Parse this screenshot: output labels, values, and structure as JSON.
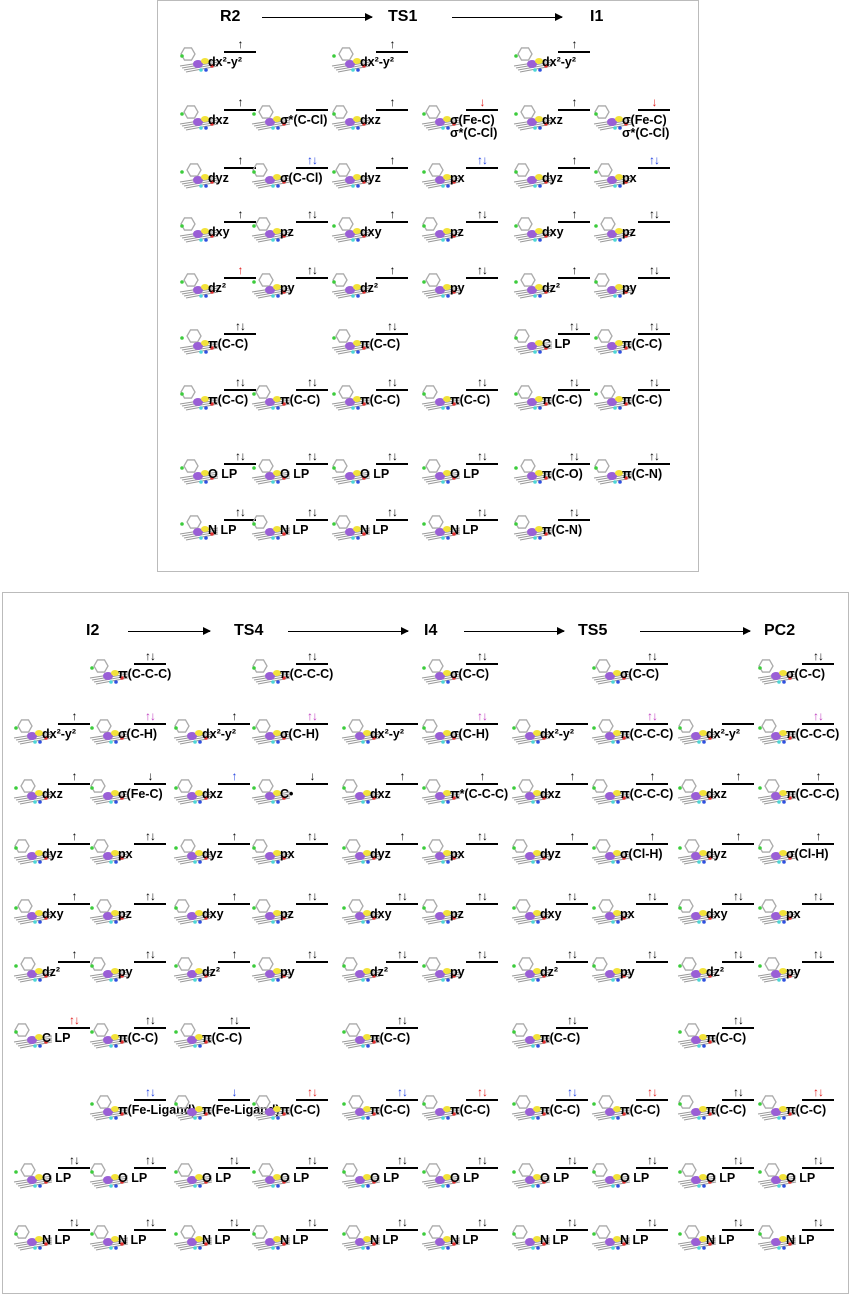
{
  "top_panel": {
    "stages": [
      "R2",
      "TS1",
      "I1"
    ],
    "columns": [
      {
        "orbitals": [
          {
            "label": "dx²-y²",
            "spin": "↑",
            "color": "black"
          },
          {
            "label": "dxz",
            "spin": "↑",
            "color": "black"
          },
          {
            "label": "dyz",
            "spin": "↑",
            "color": "black"
          },
          {
            "label": "dxy",
            "spin": "↑",
            "color": "black"
          },
          {
            "label": "dz²",
            "spin": "↑",
            "color": "red"
          },
          {
            "label": "π(C-C)",
            "spin": "↑↓",
            "color": "black"
          },
          {
            "label": "π(C-C)",
            "spin": "↑↓",
            "color": "black"
          },
          {
            "label": "O LP",
            "spin": "↑↓",
            "color": "black"
          },
          {
            "label": "N LP",
            "spin": "↑↓",
            "color": "black"
          }
        ]
      },
      {
        "orbitals": [
          null,
          {
            "label": "σ*(C-Cl)",
            "spin": "",
            "color": "black"
          },
          {
            "label": "σ(C-Cl)",
            "spin": "↑↓",
            "color": "blue"
          },
          {
            "label": "pz",
            "spin": "↑↓",
            "color": "black"
          },
          {
            "label": "py",
            "spin": "↑↓",
            "color": "black"
          },
          null,
          {
            "label": "π(C-C)",
            "spin": "↑↓",
            "color": "black"
          },
          {
            "label": "O LP",
            "spin": "↑↓",
            "color": "black"
          },
          {
            "label": "N LP",
            "spin": "↑↓",
            "color": "black"
          }
        ]
      },
      {
        "orbitals": [
          {
            "label": "dx²-y²",
            "spin": "↑",
            "color": "black"
          },
          {
            "label": "dxz",
            "spin": "↑",
            "color": "black"
          },
          {
            "label": "dyz",
            "spin": "↑",
            "color": "black"
          },
          {
            "label": "dxy",
            "spin": "↑",
            "color": "black"
          },
          {
            "label": "dz²",
            "spin": "↑",
            "color": "black"
          },
          {
            "label": "π(C-C)",
            "spin": "↑↓",
            "color": "black"
          },
          {
            "label": "π(C-C)",
            "spin": "↑↓",
            "color": "black"
          },
          {
            "label": "O LP",
            "spin": "↑↓",
            "color": "black"
          },
          {
            "label": "N LP",
            "spin": "↑↓",
            "color": "black"
          }
        ]
      },
      {
        "orbitals": [
          null,
          {
            "label": "σ(Fe-C)|σ*(C-Cl)",
            "spin": "↓",
            "color": "red"
          },
          {
            "label": "px",
            "spin": "↑↓",
            "color": "blue"
          },
          {
            "label": "pz",
            "spin": "↑↓",
            "color": "black"
          },
          {
            "label": "py",
            "spin": "↑↓",
            "color": "black"
          },
          null,
          {
            "label": "π(C-C)",
            "spin": "↑↓",
            "color": "black"
          },
          {
            "label": "O LP",
            "spin": "↑↓",
            "color": "black"
          },
          {
            "label": "N LP",
            "spin": "↑↓",
            "color": "black"
          }
        ]
      },
      {
        "orbitals": [
          {
            "label": "dx²-y²",
            "spin": "↑",
            "color": "black"
          },
          {
            "label": "dxz",
            "spin": "↑",
            "color": "black"
          },
          {
            "label": "dyz",
            "spin": "↑",
            "color": "black"
          },
          {
            "label": "dxy",
            "spin": "↑",
            "color": "black"
          },
          {
            "label": "dz²",
            "spin": "↑",
            "color": "black"
          },
          {
            "label": "C LP",
            "spin": "↑↓",
            "color": "black"
          },
          {
            "label": "π(C-C)",
            "spin": "↑↓",
            "color": "black"
          },
          {
            "label": "π(C-O)",
            "spin": "↑↓",
            "color": "black"
          },
          {
            "label": "π(C-N)",
            "spin": "↑↓",
            "color": "black"
          }
        ]
      },
      {
        "orbitals": [
          null,
          {
            "label": "σ(Fe-C)|σ*(C-Cl)",
            "spin": "↓",
            "color": "red"
          },
          {
            "label": "px",
            "spin": "↑↓",
            "color": "blue"
          },
          {
            "label": "pz",
            "spin": "↑↓",
            "color": "black"
          },
          {
            "label": "py",
            "spin": "↑↓",
            "color": "black"
          },
          {
            "label": "π(C-C)",
            "spin": "↑↓",
            "color": "black"
          },
          {
            "label": "π(C-C)",
            "spin": "↑↓",
            "color": "black"
          },
          {
            "label": "π(C-N)",
            "spin": "↑↓",
            "color": "black"
          },
          null
        ]
      }
    ]
  },
  "bottom_panel": {
    "stages": [
      "I2",
      "TS4",
      "I4",
      "TS5",
      "PC2"
    ],
    "columns": [
      {
        "orbitals": [
          null,
          {
            "label": "dx²-y²",
            "spin": "↑",
            "color": "black"
          },
          {
            "label": "dxz",
            "spin": "↑",
            "color": "black"
          },
          {
            "label": "dyz",
            "spin": "↑",
            "color": "black"
          },
          {
            "label": "dxy",
            "spin": "↑",
            "color": "black"
          },
          {
            "label": "dz²",
            "spin": "↑",
            "color": "black"
          },
          {
            "label": "C LP",
            "spin": "↑↓",
            "color": "red"
          },
          null,
          {
            "label": "O LP",
            "spin": "↑↓",
            "color": "black"
          },
          {
            "label": "N LP",
            "spin": "↑↓",
            "color": "black"
          }
        ]
      },
      {
        "orbitals": [
          {
            "label": "π(C-C-C)",
            "spin": "↑↓",
            "color": "black"
          },
          {
            "label": "σ(C-H)",
            "spin": "↑↓",
            "color": "magenta"
          },
          {
            "label": "σ(Fe-C)",
            "spin": "↓",
            "color": "black"
          },
          {
            "label": "px",
            "spin": "↑↓",
            "color": "black"
          },
          {
            "label": "pz",
            "spin": "↑↓",
            "color": "black"
          },
          {
            "label": "py",
            "spin": "↑↓",
            "color": "black"
          },
          {
            "label": "π(C-C)",
            "spin": "↑↓",
            "color": "black"
          },
          {
            "label": "π(Fe-Ligand)",
            "spin": "↑↓",
            "color": "blue"
          },
          {
            "label": "O LP",
            "spin": "↑↓",
            "color": "black"
          },
          {
            "label": "N LP",
            "spin": "↑↓",
            "color": "black"
          }
        ]
      },
      {
        "orbitals": [
          null,
          {
            "label": "dx²-y²",
            "spin": "↑",
            "color": "black"
          },
          {
            "label": "dxz",
            "spin": "↑",
            "color": "blue"
          },
          {
            "label": "dyz",
            "spin": "↑",
            "color": "black"
          },
          {
            "label": "dxy",
            "spin": "↑",
            "color": "black"
          },
          {
            "label": "dz²",
            "spin": "↑",
            "color": "black"
          },
          {
            "label": "π(C-C)",
            "spin": "↑↓",
            "color": "black"
          },
          {
            "label": "π(Fe-Ligand)",
            "spin": "↓",
            "color": "blue"
          },
          {
            "label": "O LP",
            "spin": "↑↓",
            "color": "black"
          },
          {
            "label": "N LP",
            "spin": "↑↓",
            "color": "black"
          }
        ]
      },
      {
        "orbitals": [
          {
            "label": "π(C-C-C)",
            "spin": "↑↓",
            "color": "black"
          },
          {
            "label": "σ(C-H)",
            "spin": "↑↓",
            "color": "magenta"
          },
          {
            "label": "C•",
            "spin": "↓",
            "color": "black"
          },
          {
            "label": "px",
            "spin": "↑↓",
            "color": "black"
          },
          {
            "label": "pz",
            "spin": "↑↓",
            "color": "black"
          },
          {
            "label": "py",
            "spin": "↑↓",
            "color": "black"
          },
          null,
          {
            "label": "π(C-C)",
            "spin": "↑↓",
            "color": "red"
          },
          {
            "label": "O LP",
            "spin": "↑↓",
            "color": "black"
          },
          {
            "label": "N LP",
            "spin": "↑↓",
            "color": "black"
          }
        ]
      },
      {
        "orbitals": [
          null,
          {
            "label": "dx²-y²",
            "spin": "",
            "color": "black"
          },
          {
            "label": "dxz",
            "spin": "↑",
            "color": "black"
          },
          {
            "label": "dyz",
            "spin": "↑",
            "color": "black"
          },
          {
            "label": "dxy",
            "spin": "↑↓",
            "color": "black"
          },
          {
            "label": "dz²",
            "spin": "↑↓",
            "color": "black"
          },
          {
            "label": "π(C-C)",
            "spin": "↑↓",
            "color": "black"
          },
          {
            "label": "π(C-C)",
            "spin": "↑↓",
            "color": "blue"
          },
          {
            "label": "O LP",
            "spin": "↑↓",
            "color": "black"
          },
          {
            "label": "N LP",
            "spin": "↑↓",
            "color": "black"
          }
        ]
      },
      {
        "orbitals": [
          {
            "label": "σ(C-C)",
            "spin": "↑↓",
            "color": "black"
          },
          {
            "label": "σ(C-H)",
            "spin": "↑↓",
            "color": "magenta"
          },
          {
            "label": "π*(C-C-C)",
            "spin": "↑",
            "color": "black"
          },
          {
            "label": "px",
            "spin": "↑↓",
            "color": "black"
          },
          {
            "label": "pz",
            "spin": "↑↓",
            "color": "black"
          },
          {
            "label": "py",
            "spin": "↑↓",
            "color": "black"
          },
          null,
          {
            "label": "π(C-C)",
            "spin": "↑↓",
            "color": "red"
          },
          {
            "label": "O LP",
            "spin": "↑↓",
            "color": "black"
          },
          {
            "label": "N LP",
            "spin": "↑↓",
            "color": "black"
          }
        ]
      },
      {
        "orbitals": [
          null,
          {
            "label": "dx²-y²",
            "spin": "",
            "color": "black"
          },
          {
            "label": "dxz",
            "spin": "↑",
            "color": "black"
          },
          {
            "label": "dyz",
            "spin": "↑",
            "color": "black"
          },
          {
            "label": "dxy",
            "spin": "↑↓",
            "color": "black"
          },
          {
            "label": "dz²",
            "spin": "↑↓",
            "color": "black"
          },
          {
            "label": "π(C-C)",
            "spin": "↑↓",
            "color": "black"
          },
          {
            "label": "π(C-C)",
            "spin": "↑↓",
            "color": "blue"
          },
          {
            "label": "O LP",
            "spin": "↑↓",
            "color": "black"
          },
          {
            "label": "N LP",
            "spin": "↑↓",
            "color": "black"
          }
        ]
      },
      {
        "orbitals": [
          {
            "label": "σ(C-C)",
            "spin": "↑↓",
            "color": "black"
          },
          {
            "label": "π(C-C-C)",
            "spin": "↑↓",
            "color": "magenta"
          },
          {
            "label": "π(C-C-C)",
            "spin": "↑",
            "color": "black"
          },
          {
            "label": "σ(Cl-H)",
            "spin": "↑",
            "color": "black"
          },
          {
            "label": "px",
            "spin": "↑↓",
            "color": "black"
          },
          {
            "label": "py",
            "spin": "↑↓",
            "color": "black"
          },
          null,
          {
            "label": "π(C-C)",
            "spin": "↑↓",
            "color": "red"
          },
          {
            "label": "O LP",
            "spin": "↑↓",
            "color": "black"
          },
          {
            "label": "N LP",
            "spin": "↑↓",
            "color": "black"
          }
        ]
      },
      {
        "orbitals": [
          null,
          {
            "label": "dx²-y²",
            "spin": "",
            "color": "black"
          },
          {
            "label": "dxz",
            "spin": "↑",
            "color": "black"
          },
          {
            "label": "dyz",
            "spin": "↑",
            "color": "black"
          },
          {
            "label": "dxy",
            "spin": "↑↓",
            "color": "black"
          },
          {
            "label": "dz²",
            "spin": "↑↓",
            "color": "black"
          },
          {
            "label": "π(C-C)",
            "spin": "↑↓",
            "color": "black"
          },
          {
            "label": "π(C-C)",
            "spin": "↑↓",
            "color": "black"
          },
          {
            "label": "O LP",
            "spin": "↑↓",
            "color": "black"
          },
          {
            "label": "N LP",
            "spin": "↑↓",
            "color": "black"
          }
        ]
      },
      {
        "orbitals": [
          {
            "label": "σ(C-C)",
            "spin": "↑↓",
            "color": "black"
          },
          {
            "label": "π(C-C-C)",
            "spin": "↑↓",
            "color": "magenta"
          },
          {
            "label": "π(C-C-C)",
            "spin": "↑",
            "color": "black"
          },
          {
            "label": "σ(Cl-H)",
            "spin": "↑",
            "color": "black"
          },
          {
            "label": "px",
            "spin": "↑↓",
            "color": "black"
          },
          {
            "label": "py",
            "spin": "↑↓",
            "color": "black"
          },
          null,
          {
            "label": "π(C-C)",
            "spin": "↑↓",
            "color": "red"
          },
          {
            "label": "O LP",
            "spin": "↑↓",
            "color": "black"
          },
          {
            "label": "N LP",
            "spin": "↑↓",
            "color": "black"
          }
        ]
      }
    ]
  },
  "colors": {
    "purple_lobe": "#9a5fd6",
    "yellow_lobe": "#f2e23a",
    "red": "#e02020",
    "blue": "#2040e0",
    "magenta": "#c040c0",
    "panel_border": "#bbbbbb"
  }
}
